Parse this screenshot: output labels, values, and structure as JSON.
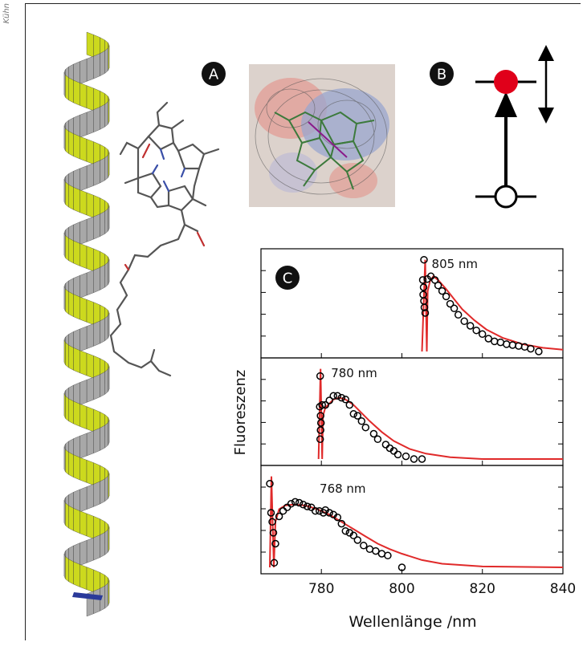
{
  "credit": "Kühn",
  "panels": {
    "a": "A",
    "b": "B",
    "c": "C"
  },
  "colors": {
    "helix_face": "#ccd91e",
    "helix_back": "#a8a8a8",
    "data": "#000000",
    "fit": "#e02a2a",
    "dot": "#e0001a"
  },
  "chart_data": {
    "type": "scatter",
    "xlabel": "Wellenlänge /nm",
    "ylabel": "Fluoreszenz",
    "xlim": [
      765,
      840
    ],
    "x_ticks": [
      780,
      800,
      820,
      840
    ],
    "grid": false,
    "panels": [
      {
        "label": "805 nm",
        "excitation": 805,
        "ylim": [
          0,
          1.05
        ],
        "points": [
          [
            805.5,
            1.0
          ],
          [
            805.2,
            0.78
          ],
          [
            805.4,
            0.7
          ],
          [
            805.3,
            0.62
          ],
          [
            805.5,
            0.55
          ],
          [
            805.6,
            0.48
          ],
          [
            805.8,
            0.42
          ],
          [
            806.3,
            0.79
          ],
          [
            807.2,
            0.82
          ],
          [
            808.2,
            0.78
          ],
          [
            809,
            0.72
          ],
          [
            810,
            0.66
          ],
          [
            811,
            0.6
          ],
          [
            812,
            0.52
          ],
          [
            813,
            0.47
          ],
          [
            814,
            0.4
          ],
          [
            815.5,
            0.33
          ],
          [
            817,
            0.28
          ],
          [
            818.5,
            0.23
          ],
          [
            820,
            0.19
          ],
          [
            821.5,
            0.14
          ],
          [
            823,
            0.11
          ],
          [
            824.5,
            0.1
          ],
          [
            826,
            0.08
          ],
          [
            827.5,
            0.07
          ],
          [
            829,
            0.06
          ],
          [
            830.5,
            0.05
          ],
          [
            832,
            0.03
          ],
          [
            834,
            0.0
          ]
        ],
        "fit": [
          [
            805,
            0
          ],
          [
            805.8,
            1.0
          ],
          [
            806.2,
            0.0
          ],
          [
            806.4,
            0.66
          ],
          [
            807,
            0.77
          ],
          [
            807.8,
            0.82
          ],
          [
            809,
            0.78
          ],
          [
            811,
            0.68
          ],
          [
            813,
            0.57
          ],
          [
            815,
            0.46
          ],
          [
            818,
            0.34
          ],
          [
            821,
            0.24
          ],
          [
            825,
            0.15
          ],
          [
            830,
            0.08
          ],
          [
            835,
            0.04
          ],
          [
            840,
            0.02
          ]
        ]
      },
      {
        "label": "780 nm",
        "excitation": 780,
        "ylim": [
          0,
          1.05
        ],
        "points": [
          [
            779.7,
            0.92
          ],
          [
            779.6,
            0.58
          ],
          [
            779.8,
            0.48
          ],
          [
            779.9,
            0.4
          ],
          [
            779.8,
            0.32
          ],
          [
            779.7,
            0.22
          ],
          [
            780.2,
            0.6
          ],
          [
            781,
            0.6
          ],
          [
            782,
            0.65
          ],
          [
            783,
            0.7
          ],
          [
            784,
            0.7
          ],
          [
            785,
            0.68
          ],
          [
            786,
            0.66
          ],
          [
            787,
            0.6
          ],
          [
            788,
            0.5
          ],
          [
            789,
            0.48
          ],
          [
            790,
            0.42
          ],
          [
            791,
            0.35
          ],
          [
            793,
            0.28
          ],
          [
            794,
            0.22
          ],
          [
            796,
            0.16
          ],
          [
            797,
            0.12
          ],
          [
            798,
            0.09
          ],
          [
            799,
            0.05
          ],
          [
            801,
            0.03
          ],
          [
            803,
            0.0
          ],
          [
            805,
            0.0
          ]
        ],
        "fit": [
          [
            779.3,
            0
          ],
          [
            779.8,
            1.0
          ],
          [
            780.2,
            0.0
          ],
          [
            780.4,
            0.48
          ],
          [
            781,
            0.57
          ],
          [
            783,
            0.66
          ],
          [
            784.5,
            0.68
          ],
          [
            786,
            0.66
          ],
          [
            788,
            0.6
          ],
          [
            790,
            0.51
          ],
          [
            792,
            0.42
          ],
          [
            795,
            0.3
          ],
          [
            798,
            0.2
          ],
          [
            802,
            0.11
          ],
          [
            806,
            0.06
          ],
          [
            812,
            0.02
          ],
          [
            820,
            0.0
          ],
          [
            840,
            0.0
          ]
        ]
      },
      {
        "label": "768 nm",
        "excitation": 768,
        "ylim": [
          0,
          1.05
        ],
        "points": [
          [
            767.2,
            0.92
          ],
          [
            767.5,
            0.6
          ],
          [
            767.8,
            0.5
          ],
          [
            768.1,
            0.38
          ],
          [
            768.6,
            0.26
          ],
          [
            768.3,
            0.05
          ],
          [
            769.5,
            0.56
          ],
          [
            770.5,
            0.62
          ],
          [
            771.5,
            0.66
          ],
          [
            772.5,
            0.7
          ],
          [
            773.5,
            0.72
          ],
          [
            774.5,
            0.71
          ],
          [
            775.5,
            0.69
          ],
          [
            776.5,
            0.67
          ],
          [
            777.5,
            0.66
          ],
          [
            778.5,
            0.62
          ],
          [
            779.5,
            0.62
          ],
          [
            780.5,
            0.6
          ],
          [
            781,
            0.63
          ],
          [
            782,
            0.6
          ],
          [
            783,
            0.58
          ],
          [
            784,
            0.55
          ],
          [
            785,
            0.48
          ],
          [
            786,
            0.4
          ],
          [
            787,
            0.38
          ],
          [
            788,
            0.35
          ],
          [
            789,
            0.3
          ],
          [
            790.5,
            0.24
          ],
          [
            792,
            0.2
          ],
          [
            793.5,
            0.18
          ],
          [
            795,
            0.15
          ],
          [
            796.5,
            0.13
          ],
          [
            800,
            0.0
          ]
        ],
        "fit": [
          [
            767.2,
            0
          ],
          [
            767.6,
            1.0
          ],
          [
            768.2,
            0.0
          ],
          [
            768.6,
            0.5
          ],
          [
            769.5,
            0.64
          ],
          [
            771,
            0.68
          ],
          [
            773,
            0.69
          ],
          [
            776,
            0.68
          ],
          [
            779,
            0.64
          ],
          [
            782,
            0.58
          ],
          [
            785,
            0.5
          ],
          [
            788,
            0.42
          ],
          [
            791,
            0.34
          ],
          [
            794,
            0.26
          ],
          [
            797,
            0.2
          ],
          [
            800,
            0.15
          ],
          [
            805,
            0.08
          ],
          [
            810,
            0.04
          ],
          [
            820,
            0.01
          ],
          [
            840,
            0.0
          ]
        ]
      }
    ]
  }
}
